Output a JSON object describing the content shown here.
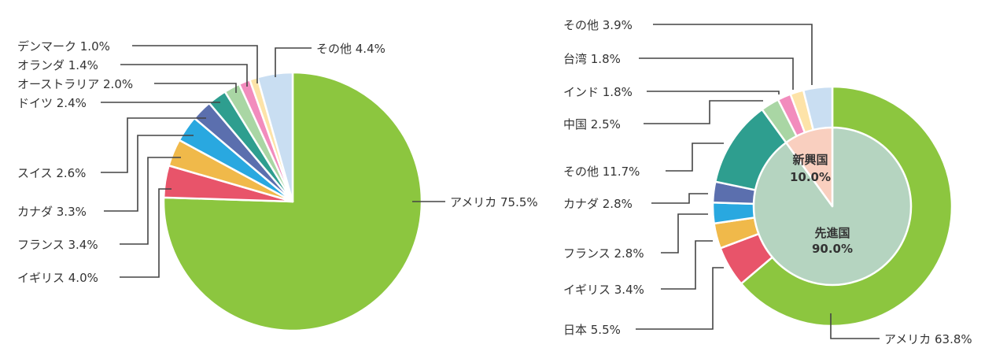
{
  "chart_data": [
    {
      "type": "pie",
      "title": "",
      "series": [
        {
          "values": [
            75.5,
            4.0,
            3.4,
            3.3,
            2.6,
            2.4,
            2.0,
            1.4,
            1.0,
            4.4
          ]
        }
      ],
      "categories": [
        "アメリカ",
        "イギリス",
        "フランス",
        "カナダ",
        "スイス",
        "ドイツ",
        "オーストラリア",
        "オランダ",
        "デンマーク",
        "その他"
      ],
      "labels": [
        "アメリカ 75.5%",
        "イギリス 4.0%",
        "フランス 3.4%",
        "カナダ 3.3%",
        "スイス 2.6%",
        "ドイツ 2.4%",
        "オーストラリア 2.0%",
        "オランダ 1.4%",
        "デンマーク 1.0%",
        "その他 4.4%"
      ],
      "colors": [
        "#8cc63f",
        "#e8546a",
        "#f0b94a",
        "#29a8e0",
        "#5b6fae",
        "#2e9e8f",
        "#a9d6a4",
        "#f28cbd",
        "#fde3a8",
        "#c9def2"
      ]
    },
    {
      "type": "pie",
      "title": "",
      "series": [
        {
          "values": [
            63.8,
            5.5,
            3.4,
            2.8,
            2.8,
            11.7,
            2.5,
            1.8,
            1.8,
            3.9
          ]
        }
      ],
      "categories": [
        "アメリカ",
        "日本",
        "イギリス",
        "フランス",
        "カナダ",
        "その他",
        "中国",
        "インド",
        "台湾",
        "その他"
      ],
      "labels": [
        "アメリカ 63.8%",
        "日本 5.5%",
        "イギリス 3.4%",
        "フランス 2.8%",
        "カナダ 2.8%",
        "その他 11.7%",
        "中国 2.5%",
        "インド 1.8%",
        "台湾 1.8%",
        "その他 3.9%"
      ],
      "colors": [
        "#8cc63f",
        "#e8546a",
        "#f0b94a",
        "#29a8e0",
        "#5b6fae",
        "#2e9e8f",
        "#a9d6a4",
        "#f28cbd",
        "#fde3a8",
        "#c9def2"
      ],
      "inner": {
        "categories": [
          "先進国",
          "新興国"
        ],
        "values": [
          90.0,
          10.0
        ],
        "labels": [
          {
            "name": "先進国",
            "value": "90.0%"
          },
          {
            "name": "新興国",
            "value": "10.0%"
          }
        ],
        "colors": [
          "#b5d4c0",
          "#f9cfbf"
        ]
      }
    }
  ]
}
